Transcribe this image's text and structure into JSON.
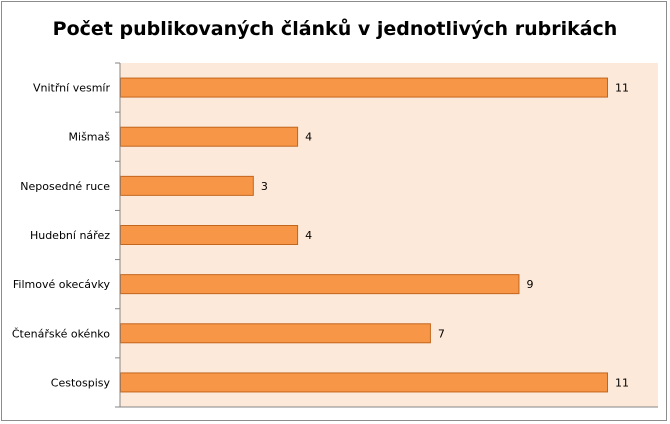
{
  "chart_data": {
    "type": "bar",
    "orientation": "horizontal",
    "title": "Počet publikovaných článků v jednotlivých rubrikách",
    "categories": [
      "Vnitřní vesmír",
      "Mišmaš",
      "Neposedné ruce",
      "Hudební nářez",
      "Filmové okecávky",
      "Čtenářské okénko",
      "Cestospisy"
    ],
    "values": [
      11,
      4,
      3,
      4,
      9,
      7,
      11
    ],
    "xlim": [
      0,
      12
    ],
    "grid": false,
    "legend": "none",
    "data_labels": true,
    "colors": {
      "bar_fill": "#f79646",
      "bar_stroke": "#c2661e",
      "plot_background": "#fde9d9",
      "axis": "#868686"
    }
  }
}
